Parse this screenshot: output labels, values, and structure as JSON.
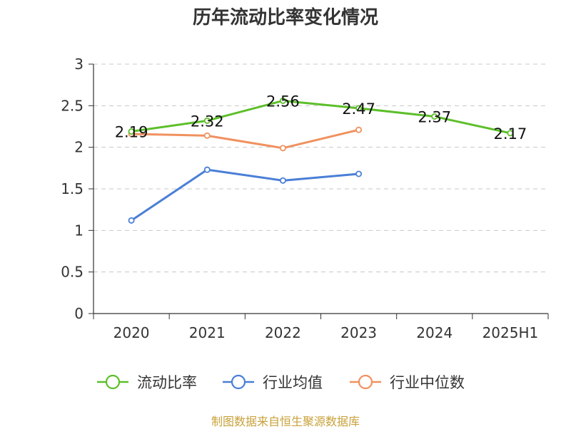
{
  "title": "历年流动比率变化情况",
  "source_note": "制图数据来自恒生聚源数据库",
  "chart_data": {
    "type": "line",
    "categories": [
      "2020",
      "2021",
      "2022",
      "2023",
      "2024",
      "2025H1"
    ],
    "ylim": [
      0,
      3
    ],
    "yticks": [
      "0",
      "0.5",
      "1",
      "1.5",
      "2",
      "2.5",
      "3"
    ],
    "grid": true,
    "legend_position": "bottom",
    "series": [
      {
        "name": "流动比率",
        "color": "#5cbf2a",
        "values": [
          2.19,
          2.32,
          2.56,
          2.47,
          2.37,
          2.17
        ],
        "labels": [
          "2.19",
          "2.32",
          "2.56",
          "2.47",
          "2.37",
          "2.17"
        ],
        "show_labels": true,
        "markers": [
          true,
          true,
          true,
          true,
          true,
          true
        ]
      },
      {
        "name": "行业均值",
        "color": "#4a7fd6",
        "values": [
          1.12,
          1.73,
          1.6,
          1.68,
          null,
          null
        ],
        "show_labels": false,
        "markers": [
          true,
          true,
          true,
          true,
          false,
          false
        ]
      },
      {
        "name": "行业中位数",
        "color": "#f0915f",
        "values": [
          2.16,
          2.14,
          1.99,
          2.21,
          null,
          null
        ],
        "show_labels": false,
        "markers": [
          true,
          true,
          true,
          true,
          false,
          false
        ]
      }
    ]
  }
}
